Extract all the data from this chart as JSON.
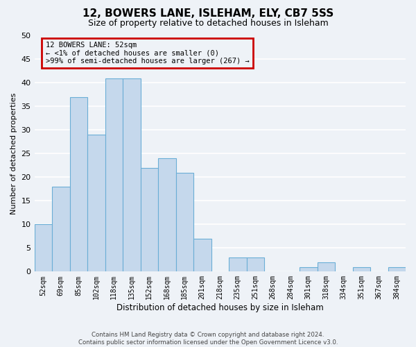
{
  "title": "12, BOWERS LANE, ISLEHAM, ELY, CB7 5SS",
  "subtitle": "Size of property relative to detached houses in Isleham",
  "xlabel": "Distribution of detached houses by size in Isleham",
  "ylabel": "Number of detached properties",
  "bin_labels": [
    "52sqm",
    "69sqm",
    "85sqm",
    "102sqm",
    "118sqm",
    "135sqm",
    "152sqm",
    "168sqm",
    "185sqm",
    "201sqm",
    "218sqm",
    "235sqm",
    "251sqm",
    "268sqm",
    "284sqm",
    "301sqm",
    "318sqm",
    "334sqm",
    "351sqm",
    "367sqm",
    "384sqm"
  ],
  "bar_values": [
    10,
    18,
    37,
    29,
    41,
    41,
    22,
    24,
    21,
    7,
    0,
    3,
    3,
    0,
    0,
    1,
    2,
    0,
    1,
    0,
    1
  ],
  "bar_color": "#c5d8ec",
  "bar_edge_color": "#6aaed6",
  "ylim": [
    0,
    50
  ],
  "yticks": [
    0,
    5,
    10,
    15,
    20,
    25,
    30,
    35,
    40,
    45,
    50
  ],
  "annotation_line1": "12 BOWERS LANE: 52sqm",
  "annotation_line2": "← <1% of detached houses are smaller (0)",
  "annotation_line3": ">99% of semi-detached houses are larger (267) →",
  "annotation_box_color": "#cc0000",
  "footer_line1": "Contains HM Land Registry data © Crown copyright and database right 2024.",
  "footer_line2": "Contains public sector information licensed under the Open Government Licence v3.0.",
  "bg_color": "#eef2f7",
  "grid_color": "#ffffff"
}
